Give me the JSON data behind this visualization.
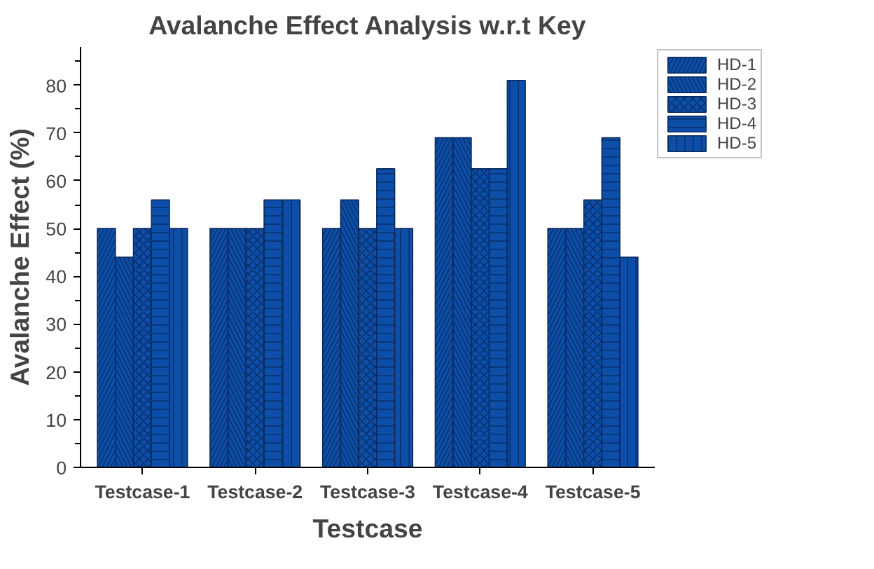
{
  "chart_data": {
    "type": "bar",
    "title": "Avalanche Effect Analysis w.r.t Key",
    "xlabel": "Testcase",
    "ylabel": "Avalanche Effect (%)",
    "categories": [
      "Testcase-1",
      "Testcase-2",
      "Testcase-3",
      "Testcase-4",
      "Testcase-5"
    ],
    "series": [
      {
        "name": "HD-1",
        "color": "#0d4fa8",
        "values": [
          50,
          50,
          50,
          69,
          50
        ]
      },
      {
        "name": "HD-2",
        "color": "#0d4fa8",
        "values": [
          44,
          50,
          56,
          69,
          50
        ]
      },
      {
        "name": "HD-3",
        "color": "#0d4fa8",
        "values": [
          50,
          50,
          50,
          62.5,
          56
        ]
      },
      {
        "name": "HD-4",
        "color": "#0d4fa8",
        "values": [
          56,
          56,
          62.5,
          62.5,
          69
        ]
      },
      {
        "name": "HD-5",
        "color": "#0d4fa8",
        "values": [
          50,
          56,
          50,
          81,
          44
        ]
      }
    ],
    "ylim": [
      0,
      88
    ],
    "yticks": [
      0,
      10,
      20,
      30,
      40,
      50,
      60,
      70,
      80
    ],
    "grid": false,
    "legend": "top right"
  }
}
